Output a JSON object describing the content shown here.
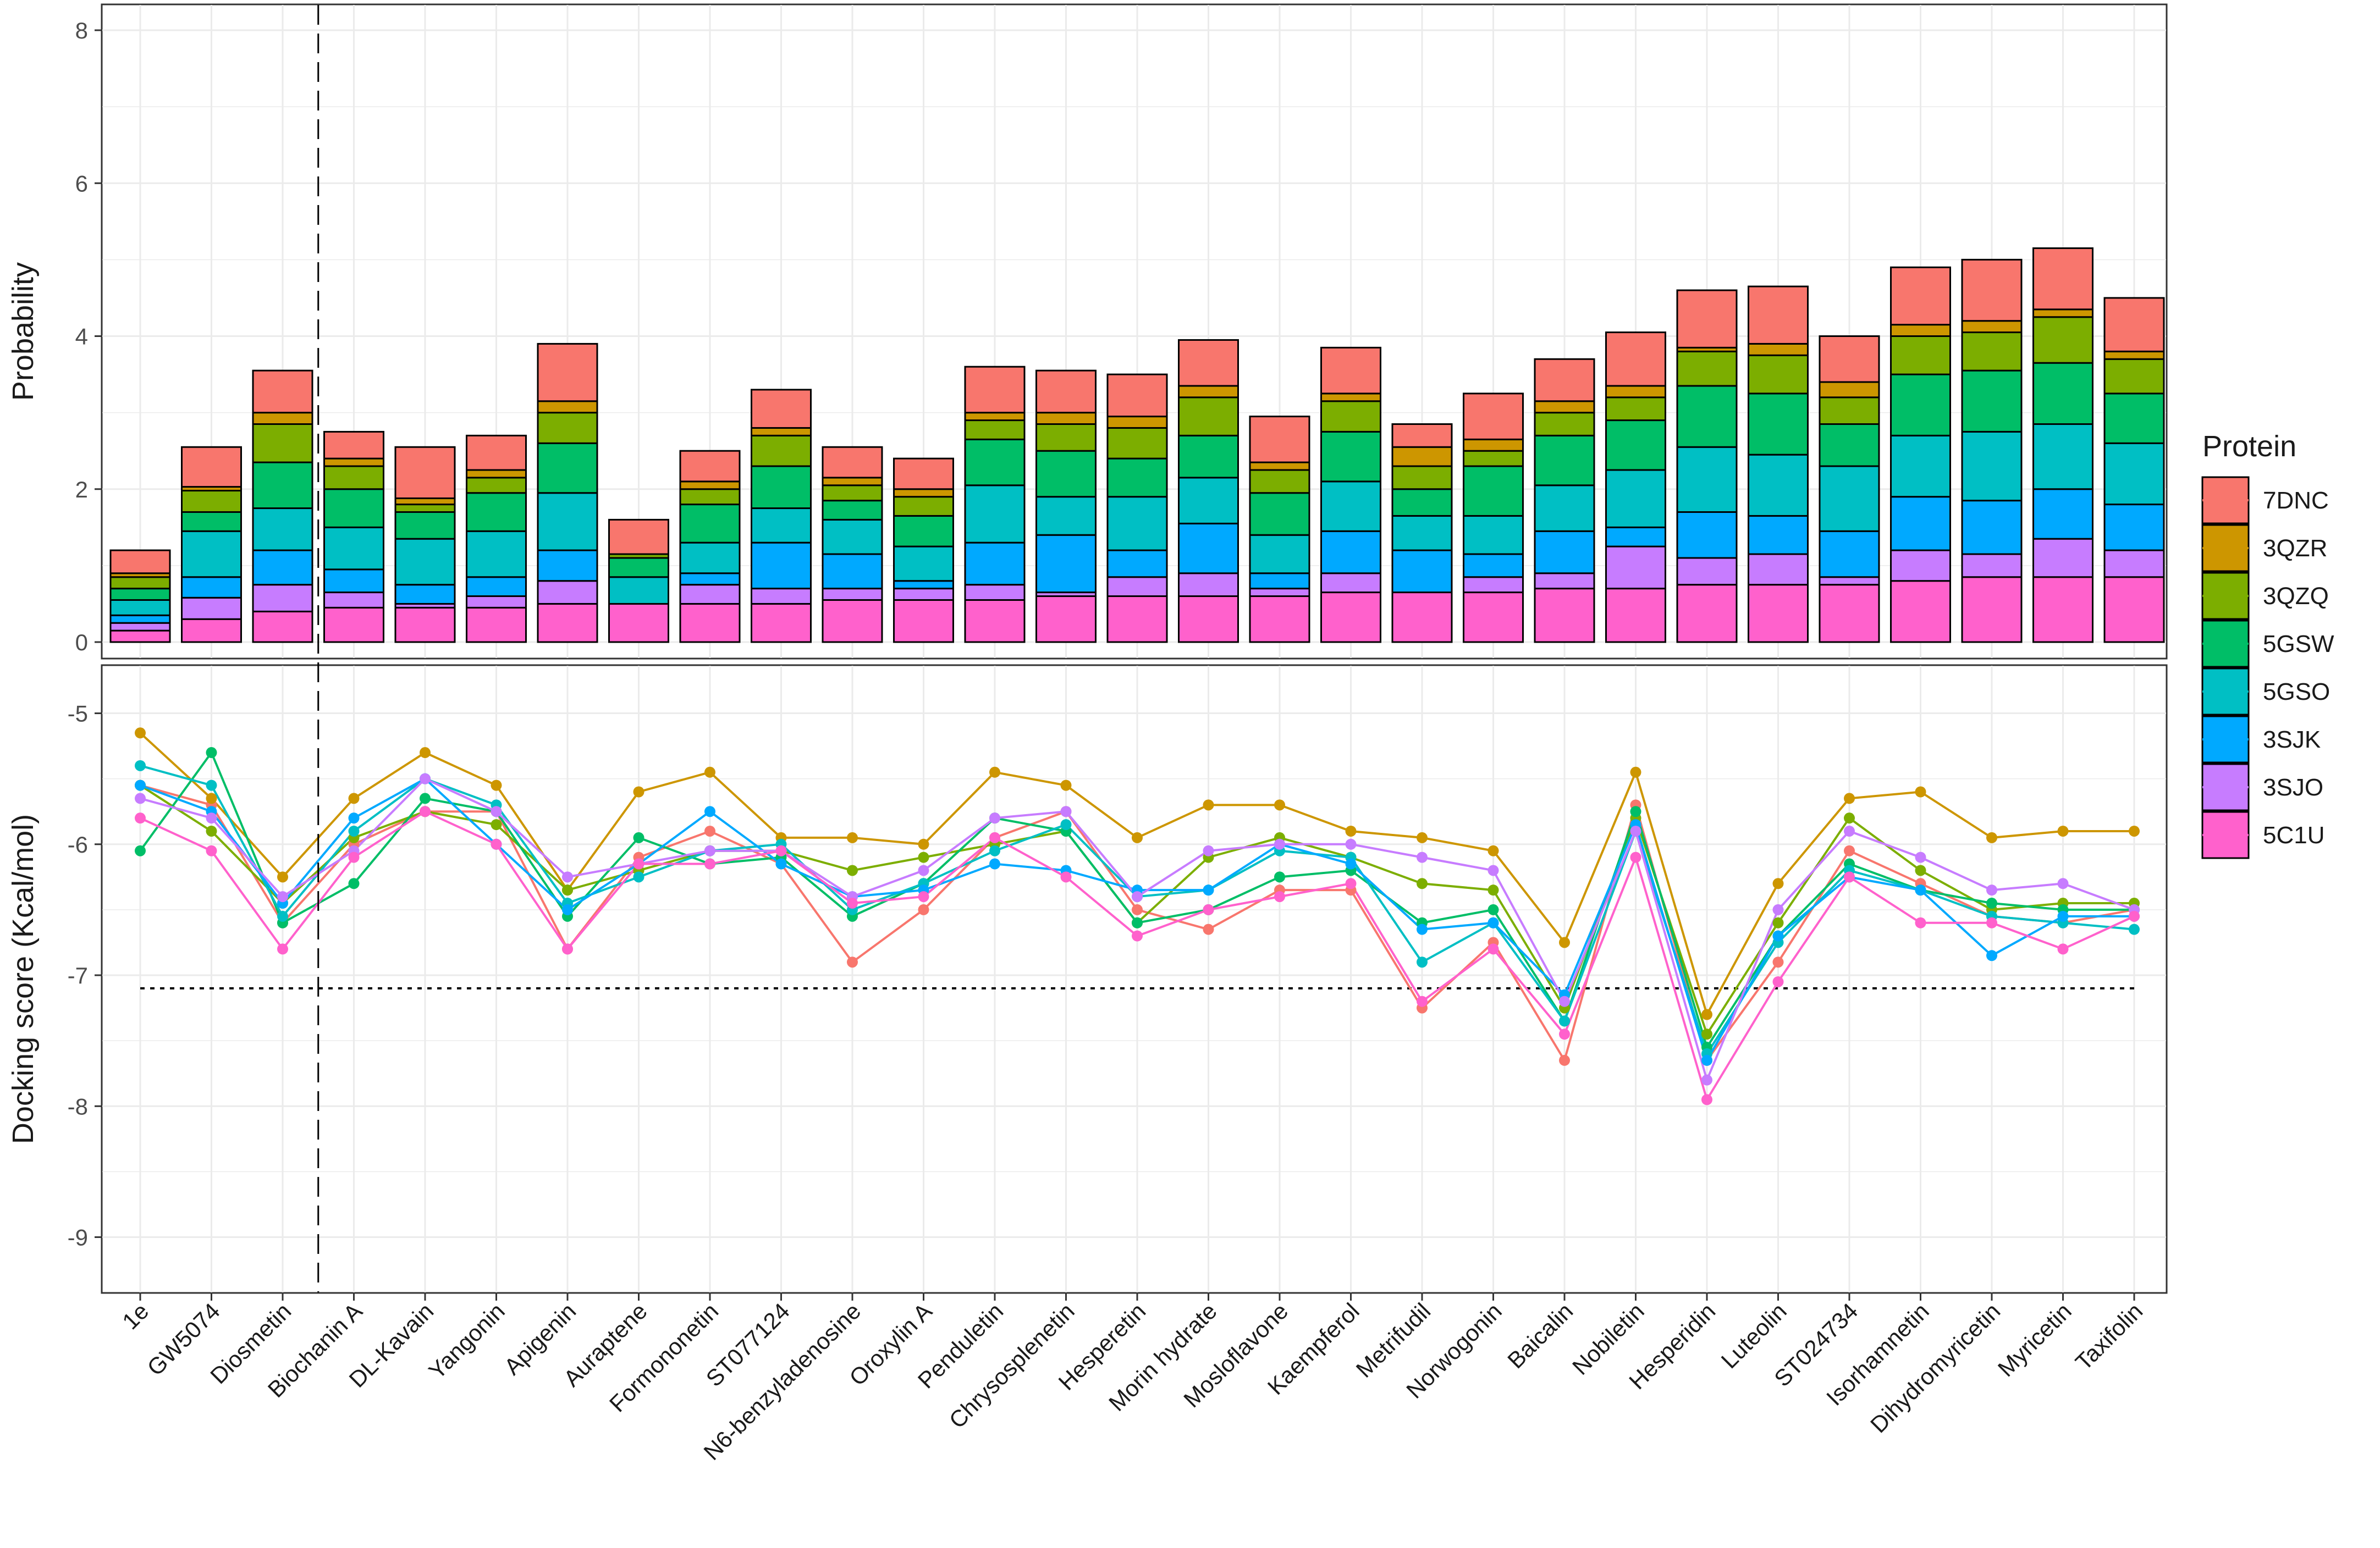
{
  "chart_data": [
    {
      "type": "bar",
      "stacked": true,
      "panel": "top",
      "ylabel": "Probability",
      "ylim": [
        0,
        8
      ],
      "yticks": [
        "0",
        "2",
        "4",
        "6",
        "8"
      ],
      "grid": true,
      "categories": [
        "1e",
        "GW5074",
        "Diosmetin",
        "Biochanin A",
        "DL-Kavain",
        "Yangonin",
        "Apigenin",
        "Auraptene",
        "Formononetin",
        "ST077124",
        "N6-benzyladenosine",
        "Oroxylin A",
        "Penduletin",
        "Chrysosplenetin",
        "Hesperetin",
        "Morin hydrate",
        "Mosloflavone",
        "Kaempferol",
        "Metrifudil",
        "Norwogonin",
        "Baicalin",
        "Nobiletin",
        "Hesperidin",
        "Luteolin",
        "ST024734",
        "Isorhamnetin",
        "Dihydromyricetin",
        "Myricetin",
        "Taxifolin"
      ],
      "series": [
        {
          "name": "5C1U",
          "values": [
            0.15,
            0.3,
            0.4,
            0.45,
            0.45,
            0.45,
            0.5,
            0.5,
            0.5,
            0.5,
            0.55,
            0.55,
            0.55,
            0.6,
            0.6,
            0.6,
            0.6,
            0.65,
            0.65,
            0.65,
            0.7,
            0.7,
            0.75,
            0.75,
            0.75,
            0.8,
            0.85,
            0.85,
            0.85
          ]
        },
        {
          "name": "3SJO",
          "values": [
            0.1,
            0.28,
            0.35,
            0.2,
            0.05,
            0.15,
            0.3,
            0.0,
            0.25,
            0.2,
            0.15,
            0.15,
            0.2,
            0.05,
            0.25,
            0.3,
            0.1,
            0.25,
            0.0,
            0.2,
            0.2,
            0.55,
            0.35,
            0.4,
            0.1,
            0.4,
            0.3,
            0.5,
            0.35
          ]
        },
        {
          "name": "3SJK",
          "values": [
            0.1,
            0.27,
            0.45,
            0.3,
            0.25,
            0.25,
            0.4,
            0.0,
            0.15,
            0.6,
            0.45,
            0.1,
            0.55,
            0.75,
            0.35,
            0.65,
            0.2,
            0.55,
            0.55,
            0.3,
            0.55,
            0.25,
            0.6,
            0.5,
            0.6,
            0.7,
            0.7,
            0.65,
            0.6
          ]
        },
        {
          "name": "5GSO",
          "values": [
            0.2,
            0.6,
            0.55,
            0.55,
            0.6,
            0.6,
            0.75,
            0.35,
            0.4,
            0.45,
            0.45,
            0.45,
            0.75,
            0.5,
            0.7,
            0.6,
            0.5,
            0.65,
            0.45,
            0.5,
            0.6,
            0.75,
            0.85,
            0.8,
            0.85,
            0.8,
            0.9,
            0.85,
            0.8
          ]
        },
        {
          "name": "5GSW",
          "values": [
            0.15,
            0.25,
            0.6,
            0.5,
            0.35,
            0.5,
            0.65,
            0.25,
            0.5,
            0.55,
            0.25,
            0.4,
            0.6,
            0.6,
            0.5,
            0.55,
            0.55,
            0.65,
            0.35,
            0.65,
            0.65,
            0.65,
            0.8,
            0.8,
            0.55,
            0.8,
            0.8,
            0.8,
            0.65
          ]
        },
        {
          "name": "3QZQ",
          "values": [
            0.15,
            0.28,
            0.5,
            0.3,
            0.1,
            0.2,
            0.4,
            0.05,
            0.2,
            0.4,
            0.2,
            0.25,
            0.25,
            0.35,
            0.4,
            0.5,
            0.3,
            0.4,
            0.3,
            0.2,
            0.3,
            0.3,
            0.45,
            0.5,
            0.35,
            0.5,
            0.5,
            0.6,
            0.45
          ]
        },
        {
          "name": "3QZR",
          "values": [
            0.05,
            0.05,
            0.15,
            0.1,
            0.08,
            0.1,
            0.15,
            0.0,
            0.1,
            0.1,
            0.1,
            0.1,
            0.1,
            0.15,
            0.15,
            0.15,
            0.1,
            0.1,
            0.25,
            0.15,
            0.15,
            0.15,
            0.05,
            0.15,
            0.2,
            0.15,
            0.15,
            0.1,
            0.1
          ]
        },
        {
          "name": "7DNC",
          "values": [
            0.3,
            0.52,
            0.55,
            0.35,
            0.67,
            0.45,
            0.75,
            0.45,
            0.4,
            0.5,
            0.4,
            0.4,
            0.6,
            0.55,
            0.55,
            0.6,
            0.6,
            0.6,
            0.3,
            0.6,
            0.55,
            0.7,
            0.75,
            0.75,
            0.6,
            0.75,
            0.8,
            0.8,
            0.7
          ]
        }
      ]
    },
    {
      "type": "line",
      "panel": "bottom",
      "ylabel": "Docking score (Kcal/mol)",
      "ylim": [
        -9.3,
        -4.75
      ],
      "yticks": [
        "-5",
        "-6",
        "-7",
        "-8",
        "-9"
      ],
      "reference_line": {
        "value": -7.1,
        "style": "dotted"
      },
      "vertical_line": {
        "between": [
          "Diosmetin",
          "Biochanin A"
        ],
        "style": "dashed"
      },
      "grid": true,
      "series": [
        {
          "name": "7DNC",
          "values": [
            -5.55,
            -5.7,
            -6.6,
            -6.0,
            -5.75,
            -5.75,
            -6.8,
            -6.1,
            -5.9,
            -6.15,
            -6.9,
            -6.5,
            -5.95,
            -5.75,
            -6.5,
            -6.65,
            -6.35,
            -6.35,
            -7.25,
            -6.75,
            -7.65,
            -5.7,
            -7.65,
            -6.9,
            -6.05,
            -6.3,
            -6.55,
            -6.6,
            -6.5
          ]
        },
        {
          "name": "3QZR",
          "values": [
            -5.15,
            -5.65,
            -6.25,
            -5.65,
            -5.3,
            -5.55,
            -6.35,
            -5.6,
            -5.45,
            -5.95,
            -5.95,
            -6.0,
            -5.45,
            -5.55,
            -5.95,
            -5.7,
            -5.7,
            -5.9,
            -5.95,
            -6.05,
            -6.75,
            -5.45,
            -7.3,
            -6.3,
            -5.65,
            -5.6,
            -5.95,
            -5.9,
            -5.9
          ]
        },
        {
          "name": "3QZQ",
          "values": [
            -5.55,
            -5.9,
            -6.45,
            -5.95,
            -5.75,
            -5.85,
            -6.35,
            -6.2,
            -6.05,
            -6.05,
            -6.2,
            -6.1,
            -6.0,
            -5.9,
            -6.6,
            -6.1,
            -5.95,
            -6.1,
            -6.3,
            -6.35,
            -7.25,
            -5.8,
            -7.45,
            -6.6,
            -5.8,
            -6.2,
            -6.5,
            -6.45,
            -6.45
          ]
        },
        {
          "name": "5GSW",
          "values": [
            -6.05,
            -5.3,
            -6.6,
            -6.3,
            -5.65,
            -5.75,
            -6.55,
            -5.95,
            -6.15,
            -6.1,
            -6.55,
            -6.3,
            -5.8,
            -5.9,
            -6.6,
            -6.5,
            -6.25,
            -6.2,
            -6.6,
            -6.5,
            -7.35,
            -5.75,
            -7.55,
            -6.7,
            -6.15,
            -6.35,
            -6.45,
            -6.5,
            -6.5
          ]
        },
        {
          "name": "5GSO",
          "values": [
            -5.4,
            -5.55,
            -6.55,
            -5.9,
            -5.5,
            -5.7,
            -6.45,
            -6.25,
            -6.05,
            -6.0,
            -6.5,
            -6.3,
            -6.05,
            -5.85,
            -6.4,
            -6.35,
            -6.05,
            -6.1,
            -6.9,
            -6.6,
            -7.35,
            -5.9,
            -7.6,
            -6.75,
            -6.2,
            -6.35,
            -6.55,
            -6.6,
            -6.65
          ]
        },
        {
          "name": "3SJK",
          "values": [
            -5.55,
            -5.75,
            -6.45,
            -5.8,
            -5.5,
            -6.0,
            -6.5,
            -6.15,
            -5.75,
            -6.15,
            -6.4,
            -6.35,
            -6.15,
            -6.2,
            -6.35,
            -6.35,
            -6.0,
            -6.15,
            -6.65,
            -6.6,
            -7.15,
            -5.85,
            -7.65,
            -6.7,
            -6.25,
            -6.35,
            -6.85,
            -6.55,
            -6.55
          ]
        },
        {
          "name": "3SJO",
          "values": [
            -5.65,
            -5.8,
            -6.4,
            -6.05,
            -5.5,
            -5.75,
            -6.25,
            -6.15,
            -6.05,
            -6.05,
            -6.4,
            -6.2,
            -5.8,
            -5.75,
            -6.4,
            -6.05,
            -6.0,
            -6.0,
            -6.1,
            -6.2,
            -7.2,
            -5.9,
            -7.8,
            -6.5,
            -5.9,
            -6.1,
            -6.35,
            -6.3,
            -6.5
          ]
        },
        {
          "name": "5C1U",
          "values": [
            -5.8,
            -6.05,
            -6.8,
            -6.1,
            -5.75,
            -6.0,
            -6.8,
            -6.15,
            -6.15,
            -6.05,
            -6.45,
            -6.4,
            -5.95,
            -6.25,
            -6.7,
            -6.5,
            -6.4,
            -6.3,
            -7.2,
            -6.8,
            -7.45,
            -6.1,
            -7.95,
            -7.05,
            -6.25,
            -6.6,
            -6.6,
            -6.8,
            -6.55
          ]
        }
      ]
    }
  ],
  "legend": {
    "title": "Protein",
    "placement": "right",
    "items": [
      {
        "name": "7DNC",
        "color": "#F8766D"
      },
      {
        "name": "3QZR",
        "color": "#CD9600"
      },
      {
        "name": "3QZQ",
        "color": "#7CAE00"
      },
      {
        "name": "5GSW",
        "color": "#00BE67"
      },
      {
        "name": "5GSO",
        "color": "#00BFC4"
      },
      {
        "name": "3SJK",
        "color": "#00A9FF"
      },
      {
        "name": "3SJO",
        "color": "#C77CFF"
      },
      {
        "name": "5C1U",
        "color": "#FF61CC"
      }
    ]
  }
}
